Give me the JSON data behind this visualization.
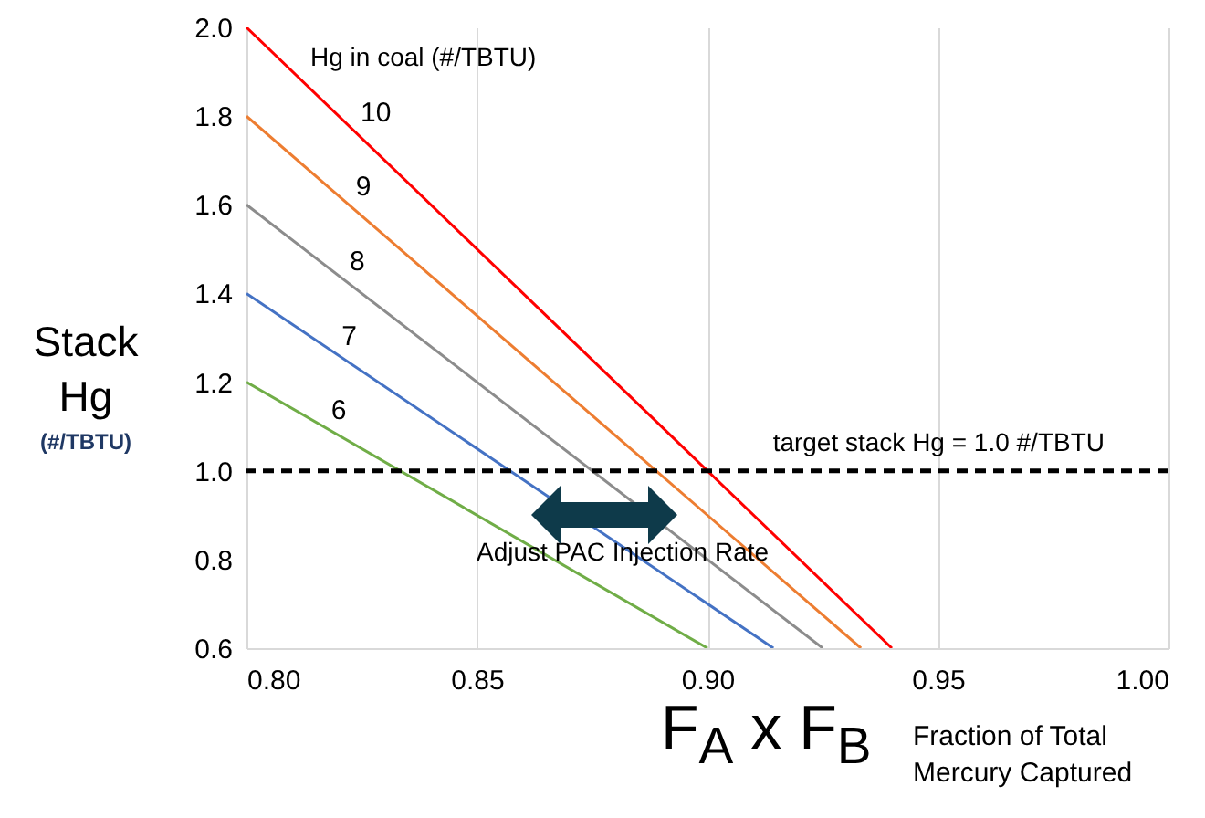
{
  "chart_data": {
    "type": "line",
    "xlabel": "F$_{A}$ x F$_{B}$",
    "ylabel": "Stack Hg",
    "legend_title": "Hg in coal (#/TBTU)",
    "annotations": [
      "(#/TBTU)",
      "Fraction of Total Mercury Captured",
      "Adjust PAC Injection Rate"
    ],
    "series": [
      {
        "name": "10",
        "color": "#ff0000",
        "x": [
          0.8,
          0.94
        ],
        "values": [
          2.0,
          0.6
        ]
      },
      {
        "name": "9",
        "color": "#ed7d31",
        "x": [
          0.8,
          0.9333
        ],
        "values": [
          1.8,
          0.6
        ]
      },
      {
        "name": "8",
        "color": "#8c8c8c",
        "x": [
          0.8,
          0.925
        ],
        "values": [
          1.6,
          0.6
        ]
      },
      {
        "name": "7",
        "color": "#4472c4",
        "x": [
          0.8,
          0.9143
        ],
        "values": [
          1.4,
          0.6
        ]
      },
      {
        "name": "6",
        "color": "#70ad47",
        "x": [
          0.8,
          0.9
        ],
        "values": [
          1.2,
          0.6
        ]
      }
    ],
    "xlim": [
      0.8,
      1.0
    ],
    "xticks": [
      {
        "value": 0.8,
        "label": "0.80"
      },
      0.85,
      {
        "value": 0.9,
        "label": "0.90"
      },
      0.95,
      {
        "value": 1.0,
        "label": "1.00"
      }
    ],
    "ylim": [
      0.6,
      2.0
    ],
    "yticks": [
      0.6,
      0.8,
      {
        "value": 1.0,
        "label": "1.0"
      },
      1.2,
      1.4,
      1.6,
      1.8,
      {
        "value": 2.0,
        "label": "2.0"
      }
    ],
    "ref_lines": [
      {
        "axis": "y",
        "value": 1.0,
        "label": "target stack Hg = 1.0 #/TBTU",
        "color": "#000000",
        "line_style": "dashed"
      }
    ],
    "grid": "x",
    "legend": false,
    "marker": "none",
    "line_style": "solid"
  }
}
